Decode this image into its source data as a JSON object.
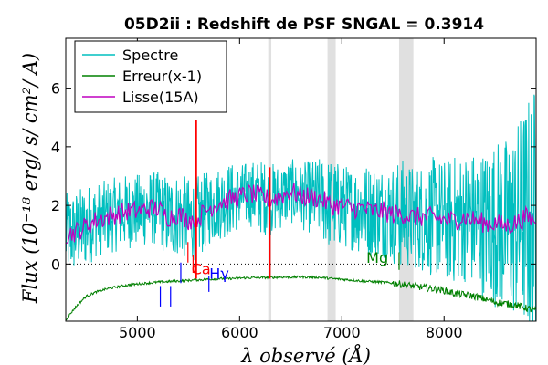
{
  "chart_data": {
    "type": "line",
    "title": "05D2ii : Redshift de PSF SNGAL = 0.3914",
    "xlabel": "λ observé (Å)",
    "ylabel": "Flux (10⁻¹⁸ erg/ s/ cm²/ A)",
    "xlim": [
      4300,
      8900
    ],
    "ylim": [
      -1.95,
      7.7
    ],
    "x_ticks": [
      5000,
      6000,
      7000,
      8000
    ],
    "y_ticks": [
      0,
      2,
      4,
      6
    ],
    "zero_line": true,
    "legend": {
      "placement": "top-left",
      "entries": [
        {
          "label": "Spectre",
          "color": "#00bfbf"
        },
        {
          "label": "Erreur(x-1)",
          "color": "#008000"
        },
        {
          "label": "Lisse(15A)",
          "color": "#bf00bf"
        }
      ]
    },
    "shaded_bands": [
      {
        "x0": 6280,
        "x1": 6310
      },
      {
        "x0": 6860,
        "x1": 6940
      },
      {
        "x0": 7560,
        "x1": 7700
      }
    ],
    "series": [
      {
        "name": "Spectre",
        "color": "#00bfbf",
        "x": [
          4300,
          4400,
          4500,
          4600,
          4700,
          4800,
          4900,
          5000,
          5100,
          5200,
          5300,
          5400,
          5500,
          5600,
          5700,
          5800,
          5900,
          6000,
          6100,
          6200,
          6300,
          6400,
          6500,
          6600,
          6700,
          6800,
          6900,
          7000,
          7100,
          7200,
          7300,
          7400,
          7500,
          7600,
          7700,
          7800,
          7900,
          8000,
          8100,
          8200,
          8300,
          8400,
          8500,
          8600,
          8700,
          8800,
          8900
        ],
        "y": [
          1.0,
          1.1,
          1.3,
          1.5,
          1.6,
          1.7,
          1.8,
          1.8,
          1.9,
          1.9,
          1.6,
          1.7,
          1.5,
          1.6,
          1.9,
          2.1,
          2.2,
          2.3,
          2.4,
          2.3,
          2.2,
          2.3,
          2.5,
          2.3,
          2.3,
          2.2,
          2.0,
          2.0,
          1.9,
          1.9,
          1.8,
          1.8,
          1.7,
          1.7,
          1.6,
          1.6,
          1.6,
          1.5,
          1.5,
          1.6,
          1.5,
          1.4,
          1.4,
          1.3,
          1.4,
          1.6,
          1.5
        ],
        "noise": [
          0.9,
          0.9,
          0.9,
          0.8,
          0.8,
          0.8,
          0.8,
          0.8,
          0.8,
          0.8,
          0.9,
          0.9,
          0.9,
          0.9,
          0.8,
          0.8,
          0.8,
          0.7,
          0.7,
          0.8,
          0.8,
          0.7,
          0.7,
          0.7,
          0.8,
          0.9,
          1.0,
          0.9,
          0.9,
          1.0,
          1.0,
          1.0,
          1.1,
          1.2,
          1.1,
          1.2,
          1.3,
          1.3,
          1.4,
          1.4,
          1.5,
          1.6,
          1.8,
          1.9,
          2.1,
          2.5,
          3.0
        ]
      },
      {
        "name": "Lisse(15A)",
        "color": "#bf00bf",
        "x": [
          4300,
          4400,
          4500,
          4600,
          4700,
          4800,
          4900,
          5000,
          5100,
          5200,
          5300,
          5400,
          5500,
          5600,
          5700,
          5800,
          5900,
          6000,
          6100,
          6200,
          6300,
          6400,
          6500,
          6600,
          6700,
          6800,
          6900,
          7000,
          7100,
          7200,
          7300,
          7400,
          7500,
          7600,
          7700,
          7800,
          7900,
          8000,
          8100,
          8200,
          8300,
          8400,
          8500,
          8600,
          8700,
          8800,
          8900
        ],
        "y": [
          1.0,
          1.1,
          1.3,
          1.5,
          1.6,
          1.7,
          1.8,
          1.8,
          1.9,
          1.9,
          1.6,
          1.7,
          1.5,
          1.6,
          1.9,
          2.1,
          2.2,
          2.3,
          2.4,
          2.3,
          2.2,
          2.3,
          2.5,
          2.3,
          2.3,
          2.2,
          2.0,
          2.0,
          1.9,
          1.9,
          1.8,
          1.8,
          1.7,
          1.7,
          1.6,
          1.6,
          1.6,
          1.5,
          1.5,
          1.6,
          1.5,
          1.4,
          1.4,
          1.3,
          1.4,
          1.6,
          1.5
        ]
      },
      {
        "name": "Erreur(x-1)",
        "color": "#008000",
        "x": [
          4300,
          4400,
          4500,
          4600,
          4700,
          4800,
          4900,
          5000,
          5100,
          5200,
          5300,
          5400,
          5500,
          5600,
          5700,
          5800,
          5900,
          6000,
          6100,
          6200,
          6300,
          6400,
          6500,
          6600,
          6700,
          6800,
          6900,
          7000,
          7100,
          7200,
          7300,
          7400,
          7500,
          7600,
          7700,
          7800,
          7900,
          8000,
          8100,
          8200,
          8300,
          8400,
          8500,
          8600,
          8700,
          8800,
          8900
        ],
        "y": [
          -1.9,
          -1.45,
          -1.1,
          -0.95,
          -0.85,
          -0.78,
          -0.72,
          -0.68,
          -0.65,
          -0.62,
          -0.6,
          -0.58,
          -0.56,
          -0.54,
          -0.52,
          -0.5,
          -0.5,
          -0.48,
          -0.47,
          -0.46,
          -0.46,
          -0.45,
          -0.45,
          -0.44,
          -0.45,
          -0.46,
          -0.5,
          -0.52,
          -0.55,
          -0.58,
          -0.6,
          -0.62,
          -0.65,
          -0.7,
          -0.75,
          -0.8,
          -0.85,
          -0.9,
          -1.0,
          -1.05,
          -1.1,
          -1.2,
          -1.3,
          -1.35,
          -1.4,
          -1.5,
          -1.6
        ]
      }
    ],
    "spikes": [
      {
        "x": 5575,
        "y0": -0.5,
        "y1": 4.9,
        "color": "#ff0000"
      },
      {
        "x": 6295,
        "y0": -0.5,
        "y1": 3.3,
        "color": "#ff0000"
      }
    ],
    "line_markers": [
      {
        "x": 5225,
        "y0": -1.45,
        "y1": -0.75,
        "color": "#0000ff"
      },
      {
        "x": 5325,
        "y0": -1.45,
        "y1": -0.75,
        "color": "#0000ff"
      },
      {
        "x": 5425,
        "y0": -0.65,
        "y1": 0.05,
        "color": "#0000ff"
      },
      {
        "x": 5495,
        "y0": 0.05,
        "y1": 0.75,
        "color": "#ff0000"
      },
      {
        "x": 5545,
        "y0": -0.3,
        "y1": 0.3,
        "color": "#ff0000"
      },
      {
        "x": 5700,
        "y0": -0.95,
        "y1": -0.4,
        "color": "#0000ff"
      },
      {
        "x": 7560,
        "y0": -0.2,
        "y1": 0.4,
        "color": "#008000"
      }
    ],
    "annotations": [
      {
        "text": "Ca",
        "x": 5530,
        "y": -0.35,
        "color": "#ff0000"
      },
      {
        "text": "Hγ",
        "x": 5705,
        "y": -0.5,
        "color": "#0000ff"
      },
      {
        "text": "Mg",
        "x": 7240,
        "y": 0.05,
        "color": "#008000"
      }
    ]
  }
}
